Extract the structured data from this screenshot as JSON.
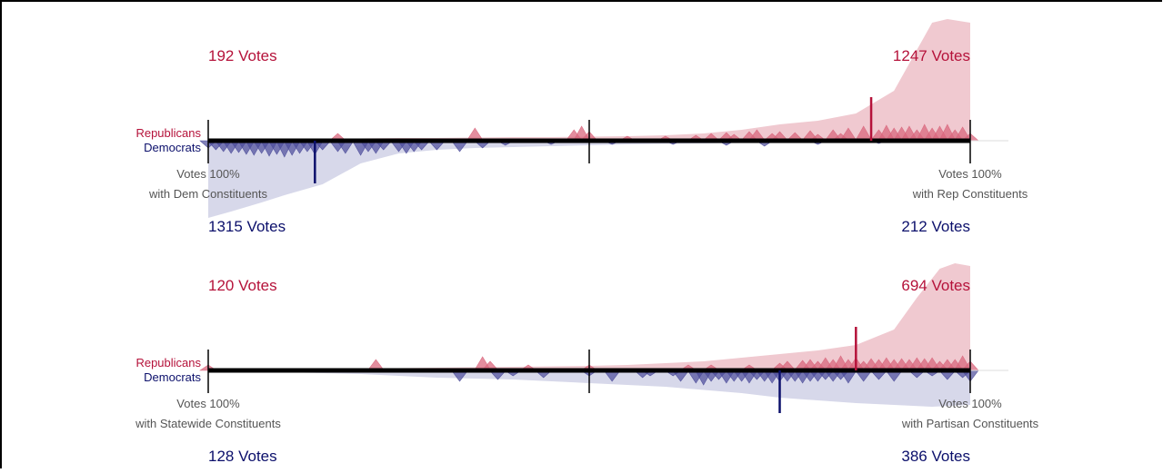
{
  "colors": {
    "republican": "#b5123a",
    "democrat": "#0b0f6b",
    "rep_fill": "#f0c9d0",
    "dem_fill": "#d7d8ea",
    "rep_marker": "#d9677d",
    "dem_marker": "#4c4c9a",
    "axis": "#000000"
  },
  "chart_data": [
    {
      "type": "area",
      "x_range": [
        0,
        100
      ],
      "party_labels": {
        "top": "Republicans",
        "bottom": "Democrats"
      },
      "left_end_label": {
        "line1": "Votes 100%",
        "line2": "with Dem Constituents"
      },
      "right_end_label": {
        "line1": "Votes 100%",
        "line2": "with Rep Constituents"
      },
      "counts": {
        "rep_left": "192  Votes",
        "rep_right": "1247  Votes",
        "dem_left": "1315 Votes",
        "dem_right": "212 Votes"
      },
      "mean_markers": {
        "republican": 87,
        "democrat": 14
      },
      "rep_density": [
        [
          0,
          1
        ],
        [
          5,
          1.5
        ],
        [
          10,
          2
        ],
        [
          15,
          2
        ],
        [
          20,
          2.5
        ],
        [
          25,
          3
        ],
        [
          30,
          3
        ],
        [
          35,
          3.5
        ],
        [
          40,
          4
        ],
        [
          45,
          4
        ],
        [
          50,
          4.5
        ],
        [
          55,
          5
        ],
        [
          60,
          6
        ],
        [
          65,
          8
        ],
        [
          70,
          12
        ],
        [
          75,
          18
        ],
        [
          80,
          22
        ],
        [
          85,
          30
        ],
        [
          90,
          55
        ],
        [
          93,
          100
        ],
        [
          95,
          130
        ],
        [
          97,
          134
        ],
        [
          100,
          130
        ]
      ],
      "dem_density": [
        [
          0,
          85
        ],
        [
          3,
          78
        ],
        [
          7,
          68
        ],
        [
          10,
          60
        ],
        [
          15,
          48
        ],
        [
          20,
          25
        ],
        [
          25,
          14
        ],
        [
          30,
          10
        ],
        [
          35,
          8
        ],
        [
          40,
          7
        ],
        [
          45,
          6
        ],
        [
          50,
          5
        ],
        [
          55,
          4
        ],
        [
          60,
          3.5
        ],
        [
          65,
          3
        ],
        [
          70,
          2.5
        ],
        [
          75,
          2
        ],
        [
          80,
          2
        ],
        [
          85,
          1.5
        ],
        [
          90,
          1
        ],
        [
          95,
          1
        ],
        [
          100,
          1
        ]
      ],
      "rep_points": [
        [
          17,
          8
        ],
        [
          35,
          14
        ],
        [
          48,
          12
        ],
        [
          49,
          16
        ],
        [
          50,
          10
        ],
        [
          55,
          5
        ],
        [
          60,
          5
        ],
        [
          64,
          6
        ],
        [
          66,
          8
        ],
        [
          68,
          9
        ],
        [
          69,
          7
        ],
        [
          71,
          10
        ],
        [
          72,
          12
        ],
        [
          74,
          8
        ],
        [
          75,
          10
        ],
        [
          77,
          9
        ],
        [
          79,
          11
        ],
        [
          80,
          7
        ],
        [
          82,
          12
        ],
        [
          83,
          8
        ],
        [
          84,
          14
        ],
        [
          86,
          16
        ],
        [
          88,
          12
        ],
        [
          89,
          17
        ],
        [
          90,
          14
        ],
        [
          91,
          15
        ],
        [
          92,
          16
        ],
        [
          93,
          12
        ],
        [
          94,
          18
        ],
        [
          95,
          14
        ],
        [
          96,
          16
        ],
        [
          97,
          18
        ],
        [
          98,
          12
        ],
        [
          99,
          15
        ],
        [
          100,
          8
        ]
      ],
      "dem_points": [
        [
          0,
          8
        ],
        [
          1,
          10
        ],
        [
          2,
          12
        ],
        [
          3,
          14
        ],
        [
          4,
          13
        ],
        [
          5,
          15
        ],
        [
          6,
          16
        ],
        [
          7,
          14
        ],
        [
          8,
          17
        ],
        [
          9,
          15
        ],
        [
          10,
          18
        ],
        [
          11,
          16
        ],
        [
          12,
          14
        ],
        [
          13,
          12
        ],
        [
          14,
          15
        ],
        [
          15,
          10
        ],
        [
          17,
          12
        ],
        [
          18,
          14
        ],
        [
          20,
          16
        ],
        [
          21,
          12
        ],
        [
          22,
          14
        ],
        [
          23,
          10
        ],
        [
          25,
          12
        ],
        [
          26,
          14
        ],
        [
          27,
          12
        ],
        [
          28,
          10
        ],
        [
          30,
          10
        ],
        [
          33,
          12
        ],
        [
          36,
          8
        ],
        [
          39,
          5
        ],
        [
          45,
          4
        ],
        [
          53,
          4
        ],
        [
          61,
          4
        ],
        [
          68,
          5
        ],
        [
          73,
          6
        ],
        [
          80,
          4
        ],
        [
          88,
          3
        ]
      ]
    },
    {
      "type": "area",
      "x_range": [
        0,
        100
      ],
      "party_labels": {
        "top": "Republicans",
        "bottom": "Democrats"
      },
      "left_end_label": {
        "line1": "Votes 100%",
        "line2": "with Statewide Constituents"
      },
      "right_end_label": {
        "line1": "Votes 100%",
        "line2": "with Partisan Constituents"
      },
      "counts": {
        "rep_left": "120  Votes",
        "rep_right": "694  Votes",
        "dem_left": "128 Votes",
        "dem_right": "386 Votes"
      },
      "mean_markers": {
        "republican": 85,
        "democrat": 75
      },
      "rep_density": [
        [
          0,
          1
        ],
        [
          10,
          1.5
        ],
        [
          20,
          2
        ],
        [
          30,
          3
        ],
        [
          40,
          4
        ],
        [
          50,
          5
        ],
        [
          55,
          6
        ],
        [
          60,
          8
        ],
        [
          65,
          10
        ],
        [
          70,
          14
        ],
        [
          75,
          18
        ],
        [
          80,
          22
        ],
        [
          85,
          28
        ],
        [
          90,
          45
        ],
        [
          93,
          80
        ],
        [
          96,
          112
        ],
        [
          98,
          118
        ],
        [
          100,
          115
        ]
      ],
      "dem_density": [
        [
          0,
          1
        ],
        [
          10,
          2
        ],
        [
          20,
          4
        ],
        [
          30,
          8
        ],
        [
          40,
          10
        ],
        [
          50,
          14
        ],
        [
          60,
          18
        ],
        [
          70,
          25
        ],
        [
          75,
          30
        ],
        [
          80,
          33
        ],
        [
          85,
          36
        ],
        [
          90,
          38
        ],
        [
          95,
          40
        ],
        [
          100,
          38
        ]
      ],
      "rep_points": [
        [
          0,
          6
        ],
        [
          22,
          12
        ],
        [
          36,
          15
        ],
        [
          37,
          10
        ],
        [
          42,
          6
        ],
        [
          50,
          6
        ],
        [
          63,
          6
        ],
        [
          66,
          6
        ],
        [
          71,
          6
        ],
        [
          75,
          8
        ],
        [
          76,
          10
        ],
        [
          78,
          11
        ],
        [
          79,
          12
        ],
        [
          80,
          10
        ],
        [
          81,
          14
        ],
        [
          82,
          12
        ],
        [
          83,
          16
        ],
        [
          84,
          12
        ],
        [
          85,
          14
        ],
        [
          86,
          10
        ],
        [
          87,
          13
        ],
        [
          88,
          12
        ],
        [
          89,
          14
        ],
        [
          90,
          12
        ],
        [
          91,
          13
        ],
        [
          92,
          12
        ],
        [
          93,
          14
        ],
        [
          94,
          13
        ],
        [
          95,
          14
        ],
        [
          96,
          10
        ],
        [
          97,
          12
        ],
        [
          98,
          12
        ],
        [
          99,
          16
        ],
        [
          100,
          10
        ]
      ],
      "dem_points": [
        [
          33,
          12
        ],
        [
          38,
          10
        ],
        [
          40,
          6
        ],
        [
          44,
          8
        ],
        [
          50,
          6
        ],
        [
          53,
          12
        ],
        [
          57,
          8
        ],
        [
          58,
          6
        ],
        [
          61,
          6
        ],
        [
          62,
          12
        ],
        [
          64,
          14
        ],
        [
          65,
          16
        ],
        [
          66,
          12
        ],
        [
          67,
          10
        ],
        [
          68,
          14
        ],
        [
          69,
          12
        ],
        [
          70,
          12
        ],
        [
          71,
          14
        ],
        [
          72,
          10
        ],
        [
          73,
          12
        ],
        [
          74,
          14
        ],
        [
          75,
          12
        ],
        [
          76,
          12
        ],
        [
          77,
          12
        ],
        [
          78,
          14
        ],
        [
          79,
          12
        ],
        [
          80,
          12
        ],
        [
          81,
          10
        ],
        [
          82,
          12
        ],
        [
          83,
          10
        ],
        [
          84,
          14
        ],
        [
          86,
          12
        ],
        [
          88,
          10
        ],
        [
          90,
          12
        ],
        [
          93,
          8
        ],
        [
          95,
          6
        ],
        [
          97,
          10
        ],
        [
          99,
          8
        ],
        [
          100,
          12
        ]
      ]
    }
  ]
}
